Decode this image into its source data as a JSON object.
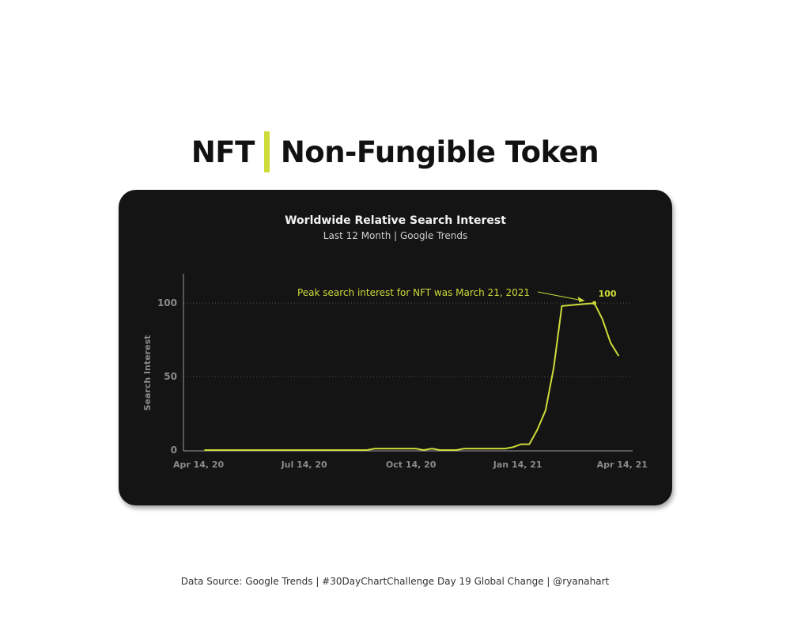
{
  "page": {
    "title_left": "NFT",
    "title_right": "Non-Fungible Token",
    "footer": "Data Source: Google Trends | #30DayChartChallenge Day 19 Global Change | @ryanahart"
  },
  "colors": {
    "accent": "#cddc39",
    "card": "#141414",
    "axis_text": "#8a8a8a"
  },
  "chart_data": {
    "type": "line",
    "title": "Worldwide Relative Search Interest",
    "subtitle": "Last 12 Month | Google Trends",
    "xlabel": "",
    "ylabel": "Search Interest",
    "ylim": [
      0,
      120
    ],
    "xlim": [
      "2020-04-01",
      "2021-04-23"
    ],
    "yticks": [
      0,
      50,
      100
    ],
    "xticks": [
      {
        "date": "2020-04-14",
        "label": "Apr 14, 20"
      },
      {
        "date": "2020-07-14",
        "label": "Jul 14, 20"
      },
      {
        "date": "2020-10-14",
        "label": "Oct 14, 20"
      },
      {
        "date": "2021-01-14",
        "label": "Jan 14, 21"
      },
      {
        "date": "2021-04-14",
        "label": "Apr 14, 21"
      }
    ],
    "grid": {
      "horizontal_dotted": true
    },
    "series": [
      {
        "color": "#cddc39",
        "points": [
          [
            "2020-04-19",
            0
          ],
          [
            "2020-04-26",
            0
          ],
          [
            "2020-05-03",
            0
          ],
          [
            "2020-05-10",
            0
          ],
          [
            "2020-05-17",
            0
          ],
          [
            "2020-05-24",
            0
          ],
          [
            "2020-05-31",
            0
          ],
          [
            "2020-06-07",
            0
          ],
          [
            "2020-06-14",
            0
          ],
          [
            "2020-06-21",
            0
          ],
          [
            "2020-06-28",
            0
          ],
          [
            "2020-07-05",
            0
          ],
          [
            "2020-07-12",
            0
          ],
          [
            "2020-07-19",
            0
          ],
          [
            "2020-07-26",
            0
          ],
          [
            "2020-08-02",
            0
          ],
          [
            "2020-08-09",
            0
          ],
          [
            "2020-08-16",
            0
          ],
          [
            "2020-08-23",
            0
          ],
          [
            "2020-08-30",
            0
          ],
          [
            "2020-09-06",
            0
          ],
          [
            "2020-09-13",
            1
          ],
          [
            "2020-09-20",
            1
          ],
          [
            "2020-09-27",
            1
          ],
          [
            "2020-10-04",
            1
          ],
          [
            "2020-10-11",
            1
          ],
          [
            "2020-10-18",
            1
          ],
          [
            "2020-10-25",
            0
          ],
          [
            "2020-11-01",
            1
          ],
          [
            "2020-11-08",
            0
          ],
          [
            "2020-11-15",
            0
          ],
          [
            "2020-11-22",
            0
          ],
          [
            "2020-11-29",
            1
          ],
          [
            "2020-12-06",
            1
          ],
          [
            "2020-12-13",
            1
          ],
          [
            "2020-12-20",
            1
          ],
          [
            "2020-12-27",
            1
          ],
          [
            "2021-01-03",
            1
          ],
          [
            "2021-01-10",
            2
          ],
          [
            "2021-01-17",
            4
          ],
          [
            "2021-01-24",
            4
          ],
          [
            "2021-01-31",
            14
          ],
          [
            "2021-02-07",
            27
          ],
          [
            "2021-02-14",
            56
          ],
          [
            "2021-02-21",
            98
          ],
          [
            "2021-03-07",
            99
          ],
          [
            "2021-03-21",
            100
          ],
          [
            "2021-03-28",
            89
          ],
          [
            "2021-04-04",
            73
          ],
          [
            "2021-04-11",
            64
          ]
        ]
      }
    ],
    "annotations": [
      {
        "text": "Peak search interest for NFT was March 21, 2021",
        "date": "2021-03-21",
        "value": 100
      },
      {
        "text": "100",
        "date": "2021-03-21",
        "value": 100
      }
    ]
  }
}
